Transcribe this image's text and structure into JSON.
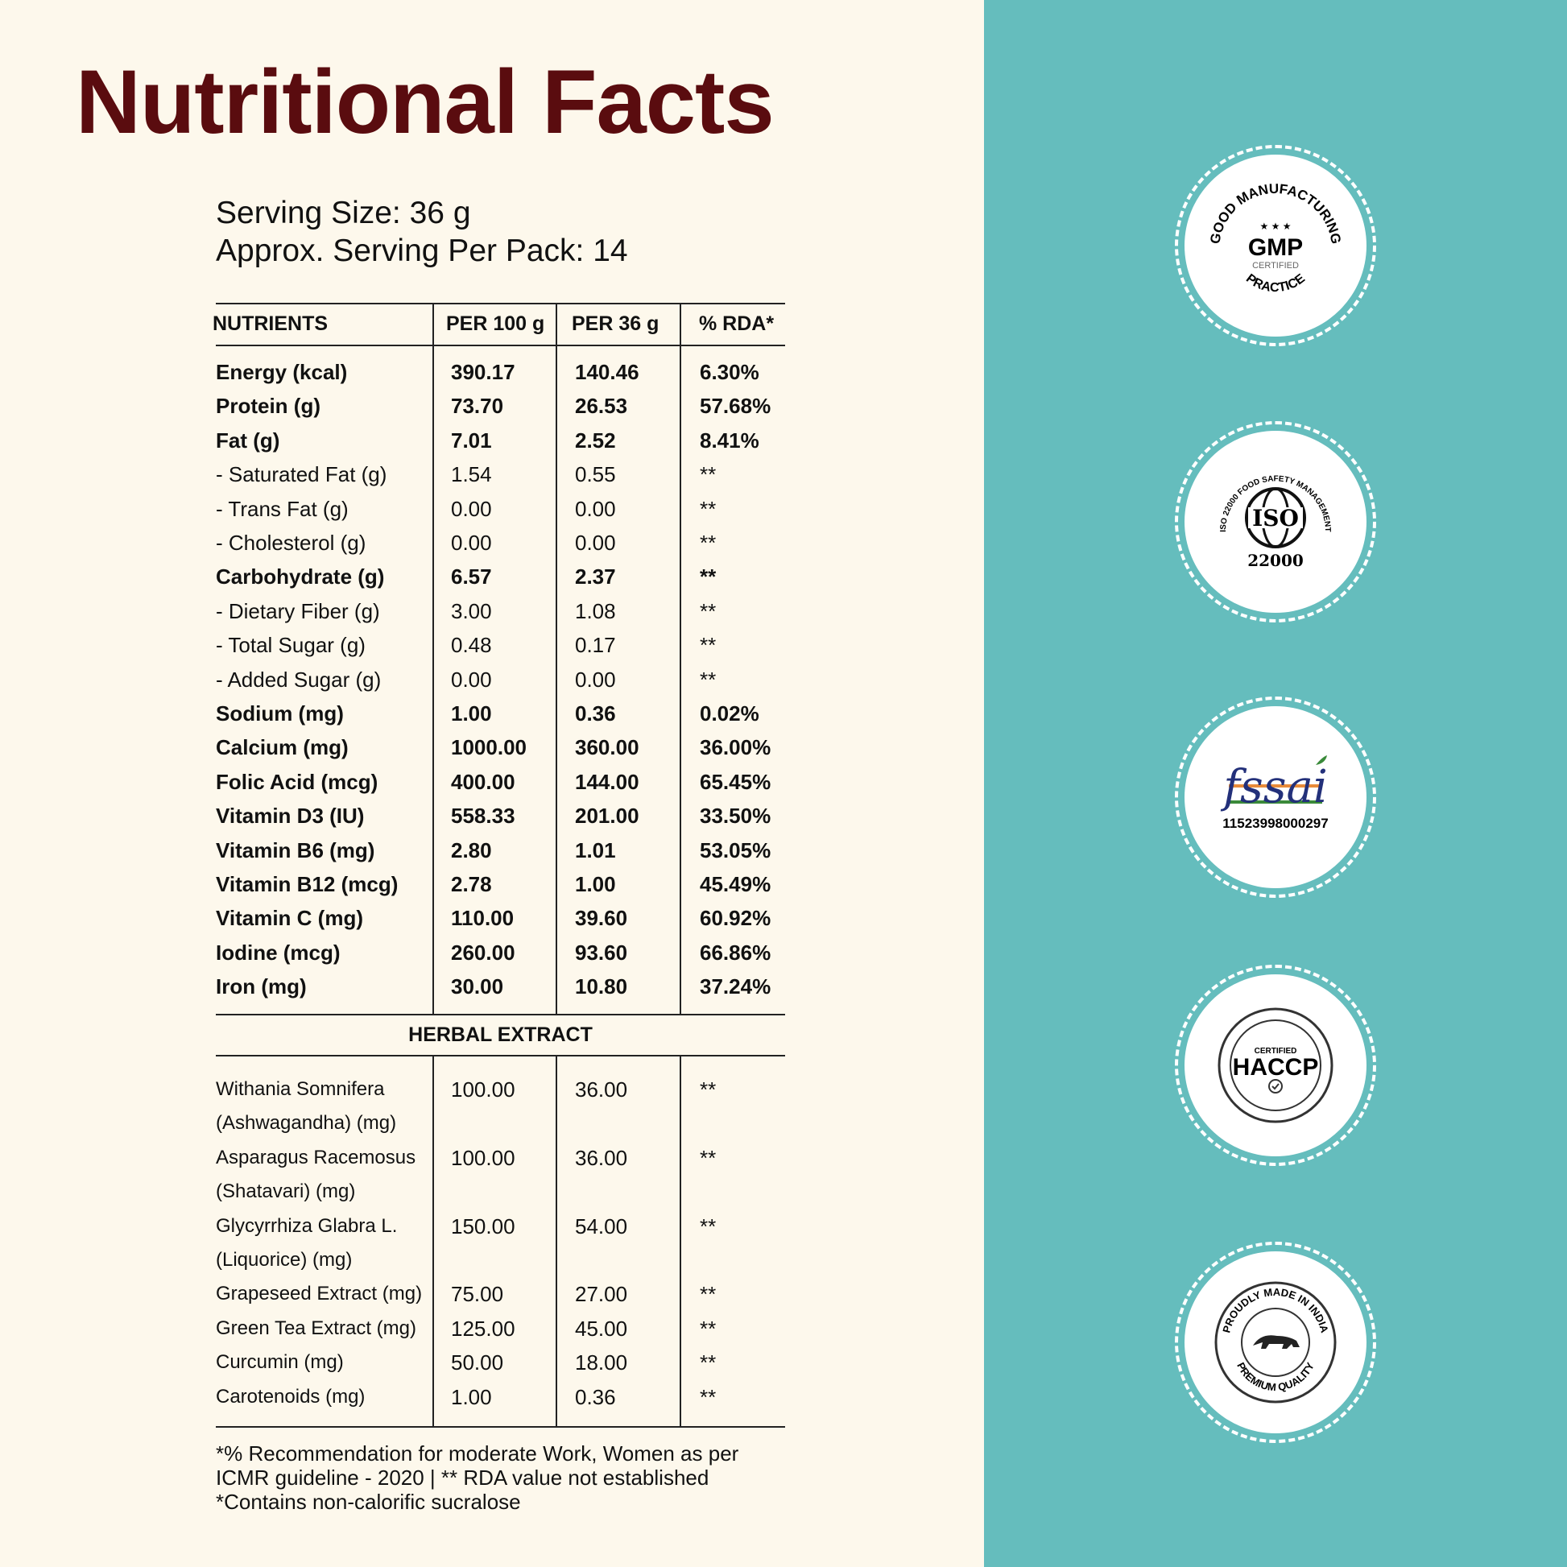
{
  "title": "Nutritional Facts",
  "serving_size": "Serving Size: 36 g",
  "servings_per_pack": "Approx. Serving Per Pack: 14",
  "headers": [
    "NUTRIENTS",
    "PER 100 g",
    "PER 36 g",
    "% RDA*"
  ],
  "nutrients": [
    {
      "name": "Energy (kcal)",
      "per100": "390.17",
      "per36": "140.46",
      "rda": "6.30%",
      "bold": true
    },
    {
      "name": "Protein (g)",
      "per100": "73.70",
      "per36": "26.53",
      "rda": "57.68%",
      "bold": true
    },
    {
      "name": "Fat (g)",
      "per100": "7.01",
      "per36": "2.52",
      "rda": "8.41%",
      "bold": true
    },
    {
      "name": "- Saturated Fat (g)",
      "per100": "1.54",
      "per36": "0.55",
      "rda": "**",
      "bold": false
    },
    {
      "name": "- Trans Fat (g)",
      "per100": "0.00",
      "per36": "0.00",
      "rda": "**",
      "bold": false
    },
    {
      "name": "- Cholesterol (g)",
      "per100": "0.00",
      "per36": "0.00",
      "rda": "**",
      "bold": false
    },
    {
      "name": "Carbohydrate (g)",
      "per100": "6.57",
      "per36": "2.37",
      "rda": "**",
      "bold": true
    },
    {
      "name": "- Dietary Fiber (g)",
      "per100": "3.00",
      "per36": "1.08",
      "rda": "**",
      "bold": false
    },
    {
      "name": "- Total Sugar (g)",
      "per100": "0.48",
      "per36": "0.17",
      "rda": "**",
      "bold": false
    },
    {
      "name": "- Added Sugar (g)",
      "per100": "0.00",
      "per36": "0.00",
      "rda": "**",
      "bold": false
    },
    {
      "name": "Sodium (mg)",
      "per100": "1.00",
      "per36": "0.36",
      "rda": "0.02%",
      "bold": true
    },
    {
      "name": "Calcium (mg)",
      "per100": "1000.00",
      "per36": "360.00",
      "rda": "36.00%",
      "bold": true
    },
    {
      "name": "Folic Acid (mcg)",
      "per100": "400.00",
      "per36": "144.00",
      "rda": "65.45%",
      "bold": true
    },
    {
      "name": "Vitamin D3 (IU)",
      "per100": "558.33",
      "per36": "201.00",
      "rda": "33.50%",
      "bold": true
    },
    {
      "name": "Vitamin B6 (mg)",
      "per100": "2.80",
      "per36": "1.01",
      "rda": "53.05%",
      "bold": true
    },
    {
      "name": "Vitamin B12 (mcg)",
      "per100": "2.78",
      "per36": "1.00",
      "rda": "45.49%",
      "bold": true
    },
    {
      "name": "Vitamin C (mg)",
      "per100": "110.00",
      "per36": "39.60",
      "rda": "60.92%",
      "bold": true
    },
    {
      "name": "Iodine (mcg)",
      "per100": "260.00",
      "per36": "93.60",
      "rda": "66.86%",
      "bold": true
    },
    {
      "name": "Iron (mg)",
      "per100": "30.00",
      "per36": "10.80",
      "rda": "37.24%",
      "bold": true
    }
  ],
  "herbal_title": "HERBAL EXTRACT",
  "herbal": [
    {
      "name": [
        "Withania Somnifera",
        "(Ashwagandha) (mg)"
      ],
      "per100": "100.00",
      "per36": "36.00",
      "rda": "**"
    },
    {
      "name": [
        "Asparagus Racemosus",
        "(Shatavari) (mg)"
      ],
      "per100": "100.00",
      "per36": "36.00",
      "rda": "**"
    },
    {
      "name": [
        "Glycyrrhiza Glabra L.",
        "(Liquorice) (mg)"
      ],
      "per100": "150.00",
      "per36": "54.00",
      "rda": "**"
    },
    {
      "name": [
        "Grapeseed Extract (mg)"
      ],
      "per100": "75.00",
      "per36": "27.00",
      "rda": "**"
    },
    {
      "name": [
        "Green Tea Extract (mg)"
      ],
      "per100": "125.00",
      "per36": "45.00",
      "rda": "**"
    },
    {
      "name": [
        "Curcumin (mg)"
      ],
      "per100": "50.00",
      "per36": "18.00",
      "rda": "**"
    },
    {
      "name": [
        "Carotenoids (mg)"
      ],
      "per100": "1.00",
      "per36": "0.36",
      "rda": "**"
    }
  ],
  "footnotes": [
    "*% Recommendation for moderate Work, Women as per",
    "ICMR guideline - 2020 | ** RDA value not established",
    "*Contains non-calorific sucralose"
  ],
  "badges": {
    "gmp": {
      "top": "GOOD MANUFACTURING",
      "main": "GMP",
      "sub": "CERTIFIED",
      "bottom": "PRACTICE"
    },
    "iso": {
      "ring": "ISO 22000 FOOD SAFETY MANAGEMENT",
      "main": "ISO",
      "num": "22000"
    },
    "fssai": {
      "main": "fssai",
      "license": "11523998000297"
    },
    "haccp": {
      "top": "CERTIFIED",
      "main": "HACCP"
    },
    "india": {
      "top": "PROUDLY MADE IN INDIA",
      "bottom": "PREMIUM QUALITY"
    }
  },
  "colors": {
    "title": "#5a0c0f",
    "panel": "#65bdbd",
    "background": "#fdf8ec"
  }
}
